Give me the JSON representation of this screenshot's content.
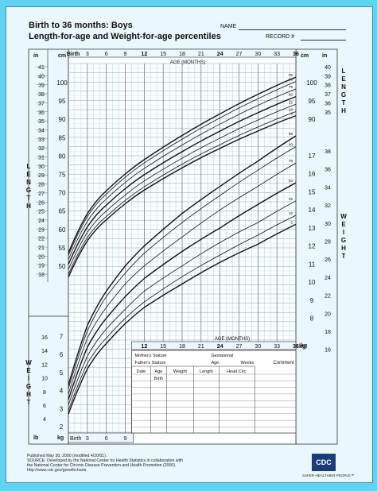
{
  "header": {
    "title1": "Birth to 36 months: Boys",
    "title2": "Length-for-age and Weight-for-age percentiles",
    "name_label": "NAME",
    "record_label": "RECORD #"
  },
  "chart_data": {
    "type": "line",
    "title": "Length-for-age and Weight-for-age percentiles",
    "xlabel": "AGE (MONTHS)",
    "x_ticks_top": [
      "Birth",
      "3",
      "6",
      "9",
      "12",
      "15",
      "18",
      "21",
      "24",
      "27",
      "30",
      "33",
      "36"
    ],
    "x_ticks_mid": [
      "12",
      "15",
      "18",
      "21",
      "24",
      "27",
      "30",
      "33",
      "36"
    ],
    "x_ticks_bottom": [
      "Birth",
      "3",
      "6",
      "9"
    ],
    "xlim": [
      0,
      36
    ],
    "length_axis": {
      "in_label": "in",
      "cm_label": "cm",
      "cm_ticks": [
        "100",
        "95",
        "90",
        "85",
        "80",
        "75",
        "70",
        "65",
        "60",
        "55",
        "50"
      ],
      "in_ticks": [
        "41",
        "40",
        "39",
        "38",
        "37",
        "36",
        "35",
        "34",
        "33",
        "32",
        "31",
        "30",
        "29",
        "28",
        "27",
        "26",
        "25",
        "24",
        "23",
        "22",
        "21",
        "20",
        "19",
        "18"
      ],
      "right_cm_ticks": [
        "100",
        "95",
        "90"
      ],
      "right_in_ticks": [
        "40",
        "39",
        "38",
        "37",
        "36",
        "35"
      ],
      "side_label": "LENGTH"
    },
    "weight_axis": {
      "kg_label": "kg",
      "lb_label": "lb",
      "right_lb_ticks": [
        "38",
        "36",
        "34",
        "32",
        "30",
        "28",
        "26",
        "24",
        "22",
        "20",
        "18",
        "16"
      ],
      "right_kg_ticks": [
        "17",
        "16",
        "15",
        "14",
        "13",
        "12",
        "11",
        "10",
        "9",
        "8"
      ],
      "left_lb_ticks": [
        "16",
        "14",
        "12",
        "10",
        "8",
        "6",
        "4"
      ],
      "left_kg_ticks": [
        "7",
        "6",
        "5",
        "4",
        "3",
        "2"
      ],
      "side_label": "WEIGHT"
    },
    "length_percentiles": [
      {
        "name": "95",
        "x": [
          0,
          3,
          6,
          9,
          12,
          18,
          24,
          30,
          36
        ],
        "y": [
          53.6,
          64.3,
          70.5,
          75.1,
          79.0,
          85.6,
          91.5,
          96.8,
          101.5
        ]
      },
      {
        "name": "90",
        "x": [
          0,
          3,
          6,
          9,
          12,
          18,
          24,
          30,
          36
        ],
        "y": [
          52.9,
          63.5,
          69.6,
          74.2,
          78.1,
          84.6,
          90.4,
          95.6,
          100.3
        ]
      },
      {
        "name": "75",
        "x": [
          0,
          3,
          6,
          9,
          12,
          18,
          24,
          30,
          36
        ],
        "y": [
          51.8,
          62.2,
          68.3,
          72.8,
          76.6,
          83.0,
          88.7,
          93.8,
          98.3
        ]
      },
      {
        "name": "50",
        "x": [
          0,
          3,
          6,
          9,
          12,
          18,
          24,
          30,
          36
        ],
        "y": [
          50.5,
          60.7,
          66.6,
          71.1,
          74.9,
          81.2,
          86.8,
          91.8,
          96.2
        ]
      },
      {
        "name": "25",
        "x": [
          0,
          3,
          6,
          9,
          12,
          18,
          24,
          30,
          36
        ],
        "y": [
          49.1,
          59.2,
          65.0,
          69.4,
          73.2,
          79.4,
          84.9,
          89.8,
          94.1
        ]
      },
      {
        "name": "10",
        "x": [
          0,
          3,
          6,
          9,
          12,
          18,
          24,
          30,
          36
        ],
        "y": [
          47.8,
          57.8,
          63.5,
          67.9,
          71.6,
          77.8,
          83.1,
          87.9,
          92.1
        ]
      },
      {
        "name": "5",
        "x": [
          0,
          3,
          6,
          9,
          12,
          18,
          24,
          30,
          36
        ],
        "y": [
          47.0,
          56.9,
          62.6,
          67.0,
          70.7,
          76.8,
          82.1,
          86.8,
          91.0
        ]
      }
    ],
    "weight_percentiles": [
      {
        "name": "95",
        "x": [
          0,
          3,
          6,
          9,
          12,
          18,
          24,
          30,
          36
        ],
        "y": [
          4.3,
          7.6,
          9.5,
          10.9,
          12.0,
          13.8,
          15.3,
          16.7,
          18.1
        ]
      },
      {
        "name": "90",
        "x": [
          0,
          3,
          6,
          9,
          12,
          18,
          24,
          30,
          36
        ],
        "y": [
          4.1,
          7.3,
          9.2,
          10.5,
          11.6,
          13.3,
          14.8,
          16.2,
          17.5
        ]
      },
      {
        "name": "75",
        "x": [
          0,
          3,
          6,
          9,
          12,
          18,
          24,
          30,
          36
        ],
        "y": [
          3.8,
          6.9,
          8.6,
          9.9,
          10.9,
          12.5,
          14.0,
          15.3,
          16.6
        ]
      },
      {
        "name": "50",
        "x": [
          0,
          3,
          6,
          9,
          12,
          18,
          24,
          30,
          36
        ],
        "y": [
          3.5,
          6.4,
          8.0,
          9.2,
          10.2,
          11.7,
          13.0,
          14.3,
          15.5
        ]
      },
      {
        "name": "25",
        "x": [
          0,
          3,
          6,
          9,
          12,
          18,
          24,
          30,
          36
        ],
        "y": [
          3.2,
          5.9,
          7.4,
          8.5,
          9.5,
          10.9,
          12.2,
          13.3,
          14.5
        ]
      },
      {
        "name": "10",
        "x": [
          0,
          3,
          6,
          9,
          12,
          18,
          24,
          30,
          36
        ],
        "y": [
          2.9,
          5.5,
          6.9,
          8.0,
          8.9,
          10.3,
          11.5,
          12.6,
          13.7
        ]
      },
      {
        "name": "5",
        "x": [
          0,
          3,
          6,
          9,
          12,
          18,
          24,
          30,
          36
        ],
        "y": [
          2.7,
          5.2,
          6.6,
          7.7,
          8.6,
          9.9,
          11.1,
          12.1,
          13.2
        ]
      }
    ],
    "grid": true
  },
  "table": {
    "mothers_stature": "Mother's Stature",
    "fathers_stature": "Father's Stature",
    "gestational": "Gestational",
    "age": "Age:",
    "weeks": "Weeks",
    "comment": "Comment",
    "columns": [
      "Date",
      "Age",
      "Weight",
      "Length",
      "Head Circ."
    ],
    "birth_row": "Birth"
  },
  "footer": {
    "line1": "Published May 30, 2000 (modified 4/20/01).",
    "line2": "SOURCE: Developed by the National Center for Health Statistics in collaboration with",
    "line3": "the National Center for Chronic Disease Prevention and Health Promotion (2000).",
    "line4": "http://www.cdc.gov/growthcharts",
    "logo_text": "CDC",
    "tagline": "SAFER·HEALTHIER·PEOPLE™"
  },
  "colors": {
    "frame_bg": "#5fd3f0",
    "paper": "#eaf7fc",
    "grid_minor": "#9bc4d6",
    "curve": "#111111"
  }
}
